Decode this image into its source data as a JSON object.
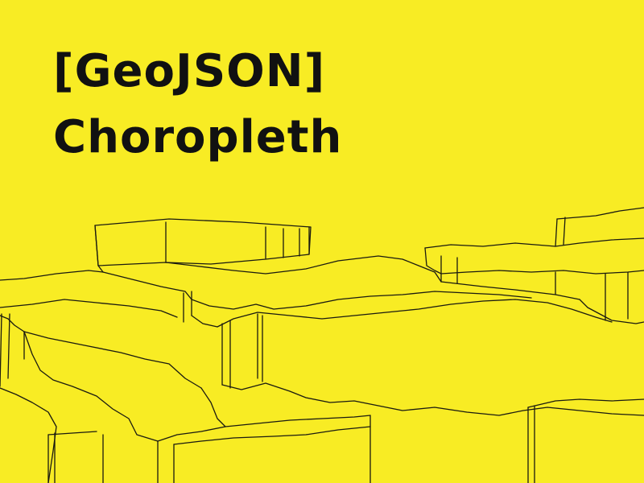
{
  "poster": {
    "title_line_1": "[GeoJSON]",
    "title_line_2": "Choropleth",
    "background_color": "#f8ec24",
    "text_color": "#111111",
    "illustration": "extruded-3d-choropleth-map-outline"
  }
}
